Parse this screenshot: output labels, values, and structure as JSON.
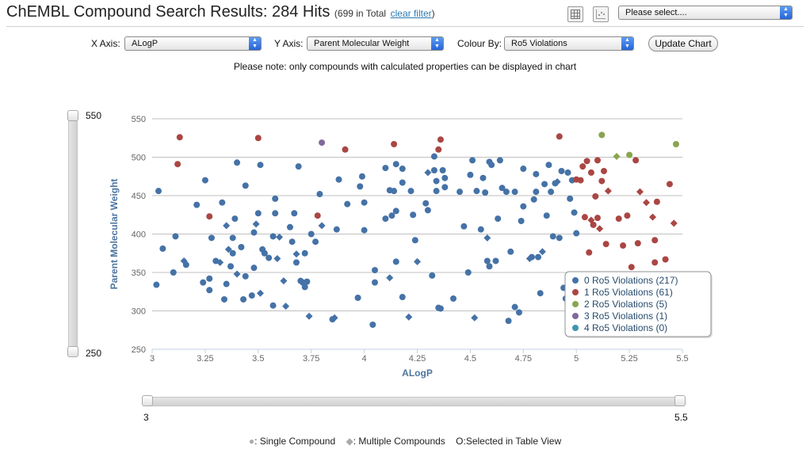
{
  "header": {
    "title": "ChEMBL Compound Search Results: 284 Hits",
    "total_text": "(699 in Total",
    "clear_filter": "clear filter",
    "close_paren": ")",
    "select_placeholder": "Please select...."
  },
  "controls": {
    "x_axis_label": "X Axis:",
    "x_axis_value": "ALogP",
    "y_axis_label": "Y Axis:",
    "y_axis_value": "Parent Molecular Weight",
    "colour_label": "Colour By:",
    "colour_value": "Ro5 Violations",
    "update_button": "Update Chart"
  },
  "note": "Please note: only compounds with calculated properties can be displayed in chart",
  "sliders": {
    "y_max": "550",
    "y_min": "250",
    "x_min": "3",
    "x_max": "5.5"
  },
  "footer": {
    "single_symbol": "●",
    "single_label": ": Single Compound",
    "multiple_symbol": "◆",
    "multiple_label": ": Multiple Compounds",
    "selected_symbol": "O",
    "selected_label": ":Selected in Table View"
  },
  "chart_data": {
    "type": "scatter",
    "xlabel": "ALogP",
    "ylabel": "Parent Molecular Weight",
    "xlim": [
      3,
      5.5
    ],
    "ylim": [
      250,
      550
    ],
    "x_ticks": [
      "3",
      "3.25",
      "3.5",
      "3.75",
      "4",
      "4.25",
      "4.5",
      "4.75",
      "5",
      "5.25",
      "5.5"
    ],
    "y_ticks": [
      "250",
      "300",
      "350",
      "400",
      "450",
      "500",
      "550"
    ],
    "grid": "horizontal",
    "legend_position": "bottom-right",
    "series": [
      {
        "name": "0 Ro5 Violations (217)",
        "color": "#4572a7",
        "points": [
          [
            3.02,
            334,
            "c"
          ],
          [
            3.03,
            456,
            "c"
          ],
          [
            3.05,
            381,
            "c"
          ],
          [
            3.1,
            350,
            "c"
          ],
          [
            3.11,
            397,
            "c"
          ],
          [
            3.16,
            360,
            "c"
          ],
          [
            3.15,
            365,
            "d"
          ],
          [
            3.21,
            438,
            "c"
          ],
          [
            3.24,
            337,
            "c"
          ],
          [
            3.25,
            470,
            "c"
          ],
          [
            3.27,
            327,
            "c"
          ],
          [
            3.27,
            342,
            "c"
          ],
          [
            3.28,
            395,
            "c"
          ],
          [
            3.3,
            365,
            "c"
          ],
          [
            3.32,
            363,
            "d"
          ],
          [
            3.33,
            441,
            "c"
          ],
          [
            3.34,
            315,
            "c"
          ],
          [
            3.35,
            335,
            "c"
          ],
          [
            3.35,
            411,
            "d"
          ],
          [
            3.36,
            380,
            "d"
          ],
          [
            3.37,
            358,
            "c"
          ],
          [
            3.38,
            395,
            "c"
          ],
          [
            3.38,
            375,
            "c"
          ],
          [
            3.39,
            420,
            "c"
          ],
          [
            3.4,
            493,
            "c"
          ],
          [
            3.4,
            348,
            "d"
          ],
          [
            3.42,
            383,
            "c"
          ],
          [
            3.43,
            315,
            "c"
          ],
          [
            3.44,
            463,
            "c"
          ],
          [
            3.44,
            345,
            "c"
          ],
          [
            3.47,
            320,
            "c"
          ],
          [
            3.48,
            356,
            "c"
          ],
          [
            3.48,
            402,
            "c"
          ],
          [
            3.49,
            413,
            "d"
          ],
          [
            3.5,
            427,
            "c"
          ],
          [
            3.51,
            490,
            "c"
          ],
          [
            3.51,
            323,
            "d"
          ],
          [
            3.52,
            380,
            "c"
          ],
          [
            3.53,
            375,
            "c"
          ],
          [
            3.55,
            369,
            "c"
          ],
          [
            3.57,
            307,
            "c"
          ],
          [
            3.57,
            397,
            "c"
          ],
          [
            3.58,
            427,
            "c"
          ],
          [
            3.58,
            446,
            "c"
          ],
          [
            3.59,
            368,
            "d"
          ],
          [
            3.6,
            396,
            "d"
          ],
          [
            3.62,
            339,
            "d"
          ],
          [
            3.63,
            306,
            "d"
          ],
          [
            3.65,
            409,
            "c"
          ],
          [
            3.66,
            390,
            "c"
          ],
          [
            3.67,
            427,
            "c"
          ],
          [
            3.68,
            374,
            "d"
          ],
          [
            3.68,
            363,
            "c"
          ],
          [
            3.69,
            488,
            "c"
          ],
          [
            3.7,
            339,
            "c"
          ],
          [
            3.71,
            337,
            "c"
          ],
          [
            3.72,
            375,
            "c"
          ],
          [
            3.72,
            331,
            "c"
          ],
          [
            3.73,
            338,
            "c"
          ],
          [
            3.74,
            293,
            "d"
          ],
          [
            3.75,
            400,
            "c"
          ],
          [
            3.77,
            390,
            "c"
          ],
          [
            3.79,
            452,
            "c"
          ],
          [
            3.8,
            411,
            "d"
          ],
          [
            3.85,
            289,
            "c"
          ],
          [
            3.86,
            291,
            "d"
          ],
          [
            3.87,
            406,
            "c"
          ],
          [
            3.88,
            471,
            "c"
          ],
          [
            3.92,
            439,
            "c"
          ],
          [
            3.97,
            317,
            "c"
          ],
          [
            3.98,
            462,
            "c"
          ],
          [
            3.99,
            475,
            "c"
          ],
          [
            4,
            405,
            "c"
          ],
          [
            4,
            441,
            "c"
          ],
          [
            4.04,
            282,
            "c"
          ],
          [
            4.05,
            353,
            "c"
          ],
          [
            4.05,
            337,
            "c"
          ],
          [
            4.1,
            420,
            "c"
          ],
          [
            4.1,
            486,
            "c"
          ],
          [
            4.12,
            343,
            "d"
          ],
          [
            4.12,
            457,
            "c"
          ],
          [
            4.13,
            424,
            "c"
          ],
          [
            4.14,
            456,
            "c"
          ],
          [
            4.15,
            430,
            "c"
          ],
          [
            4.15,
            491,
            "c"
          ],
          [
            4.15,
            364,
            "c"
          ],
          [
            4.18,
            318,
            "c"
          ],
          [
            4.18,
            485,
            "c"
          ],
          [
            4.18,
            467,
            "c"
          ],
          [
            4.21,
            292,
            "d"
          ],
          [
            4.22,
            456,
            "c"
          ],
          [
            4.24,
            392,
            "c"
          ],
          [
            4.23,
            425,
            "c"
          ],
          [
            4.25,
            364,
            "d"
          ],
          [
            4.29,
            440,
            "c"
          ],
          [
            4.3,
            480,
            "d"
          ],
          [
            4.3,
            431,
            "c"
          ],
          [
            4.32,
            346,
            "c"
          ],
          [
            4.33,
            483,
            "c"
          ],
          [
            4.33,
            501,
            "c"
          ],
          [
            4.34,
            456,
            "c"
          ],
          [
            4.34,
            469,
            "c"
          ],
          [
            4.35,
            304,
            "c"
          ],
          [
            4.36,
            303,
            "c"
          ],
          [
            4.37,
            483,
            "c"
          ],
          [
            4.38,
            473,
            "c"
          ],
          [
            4.38,
            461,
            "c"
          ],
          [
            4.42,
            316,
            "c"
          ],
          [
            4.45,
            455,
            "c"
          ],
          [
            4.47,
            410,
            "c"
          ],
          [
            4.49,
            350,
            "c"
          ],
          [
            4.5,
            477,
            "c"
          ],
          [
            4.51,
            496,
            "c"
          ],
          [
            4.52,
            291,
            "d"
          ],
          [
            4.53,
            456,
            "c"
          ],
          [
            4.55,
            406,
            "c"
          ],
          [
            4.56,
            473,
            "c"
          ],
          [
            4.57,
            454,
            "c"
          ],
          [
            4.58,
            365,
            "c"
          ],
          [
            4.58,
            395,
            "d"
          ],
          [
            4.59,
            358,
            "c"
          ],
          [
            4.59,
            494,
            "c"
          ],
          [
            4.6,
            490,
            "c"
          ],
          [
            4.62,
            365,
            "c"
          ],
          [
            4.63,
            420,
            "c"
          ],
          [
            4.64,
            496,
            "c"
          ],
          [
            4.65,
            460,
            "c"
          ],
          [
            4.67,
            455,
            "c"
          ],
          [
            4.68,
            287,
            "c"
          ],
          [
            4.69,
            377,
            "c"
          ],
          [
            4.71,
            305,
            "c"
          ],
          [
            4.71,
            455,
            "c"
          ],
          [
            4.73,
            298,
            "c"
          ],
          [
            4.74,
            417,
            "c"
          ],
          [
            4.75,
            485,
            "c"
          ],
          [
            4.75,
            436,
            "c"
          ],
          [
            4.78,
            368,
            "d"
          ],
          [
            4.79,
            370,
            "c"
          ],
          [
            4.8,
            445,
            "c"
          ],
          [
            4.81,
            455,
            "c"
          ],
          [
            4.81,
            478,
            "c"
          ],
          [
            4.82,
            370,
            "c"
          ],
          [
            4.83,
            323,
            "c"
          ],
          [
            4.84,
            377,
            "d"
          ],
          [
            4.85,
            465,
            "c"
          ],
          [
            4.86,
            424,
            "c"
          ],
          [
            4.87,
            490,
            "c"
          ],
          [
            4.88,
            455,
            "c"
          ],
          [
            4.89,
            397,
            "c"
          ],
          [
            4.9,
            466,
            "c"
          ],
          [
            4.91,
            468,
            "d"
          ],
          [
            4.92,
            395,
            "c"
          ],
          [
            4.93,
            482,
            "c"
          ],
          [
            4.94,
            330,
            "c"
          ],
          [
            4.96,
            480,
            "c"
          ],
          [
            4.97,
            446,
            "c"
          ],
          [
            4.98,
            470,
            "c"
          ],
          [
            4.99,
            428,
            "c"
          ],
          [
            5,
            401,
            "c"
          ],
          [
            4.95,
            316,
            "c"
          ]
        ]
      },
      {
        "name": "1 Ro5 Violations (61)",
        "color": "#aa4643",
        "points": [
          [
            3.13,
            526,
            "c"
          ],
          [
            3.12,
            491,
            "c"
          ],
          [
            3.27,
            423,
            "c"
          ],
          [
            3.5,
            525,
            "c"
          ],
          [
            3.78,
            424,
            "c"
          ],
          [
            3.91,
            510,
            "c"
          ],
          [
            4.14,
            517,
            "c"
          ],
          [
            4.35,
            510,
            "c"
          ],
          [
            4.36,
            523,
            "c"
          ],
          [
            4.92,
            527,
            "c"
          ],
          [
            5.0,
            471,
            "c"
          ],
          [
            5.02,
            470,
            "c"
          ],
          [
            5.03,
            488,
            "c"
          ],
          [
            5.04,
            422,
            "c"
          ],
          [
            5.05,
            495,
            "c"
          ],
          [
            5.06,
            376,
            "c"
          ],
          [
            5.07,
            480,
            "c"
          ],
          [
            5.08,
            412,
            "c"
          ],
          [
            5.09,
            449,
            "c"
          ],
          [
            5.1,
            496,
            "c"
          ],
          [
            5.1,
            421,
            "c"
          ],
          [
            5.11,
            407,
            "d"
          ],
          [
            5.12,
            469,
            "c"
          ],
          [
            5.13,
            482,
            "c"
          ],
          [
            5.15,
            456,
            "d"
          ],
          [
            5.14,
            387,
            "c"
          ],
          [
            5.2,
            420,
            "c"
          ],
          [
            5.22,
            385,
            "c"
          ],
          [
            5.24,
            424,
            "c"
          ],
          [
            5.26,
            357,
            "c"
          ],
          [
            5.28,
            496,
            "c"
          ],
          [
            5.29,
            388,
            "c"
          ],
          [
            5.3,
            455,
            "d"
          ],
          [
            5.33,
            441,
            "d"
          ],
          [
            5.36,
            422,
            "d"
          ],
          [
            5.37,
            392,
            "c"
          ],
          [
            5.38,
            442,
            "c"
          ],
          [
            5.42,
            367,
            "c"
          ],
          [
            5.44,
            465,
            "c"
          ],
          [
            5.46,
            414,
            "d"
          ],
          [
            5.07,
            418,
            "d"
          ],
          [
            5.37,
            363,
            "c"
          ]
        ]
      },
      {
        "name": "2 Ro5 Violations (5)",
        "color": "#89a54e",
        "points": [
          [
            5.12,
            529,
            "c"
          ],
          [
            5.19,
            501,
            "d"
          ],
          [
            5.25,
            503,
            "c"
          ],
          [
            5.47,
            517,
            "c"
          ]
        ]
      },
      {
        "name": "3 Ro5 Violations (1)",
        "color": "#80699b",
        "points": [
          [
            3.8,
            519,
            "c"
          ]
        ]
      },
      {
        "name": "4 Ro5 Violations (0)",
        "color": "#3d96ae",
        "points": []
      }
    ]
  }
}
